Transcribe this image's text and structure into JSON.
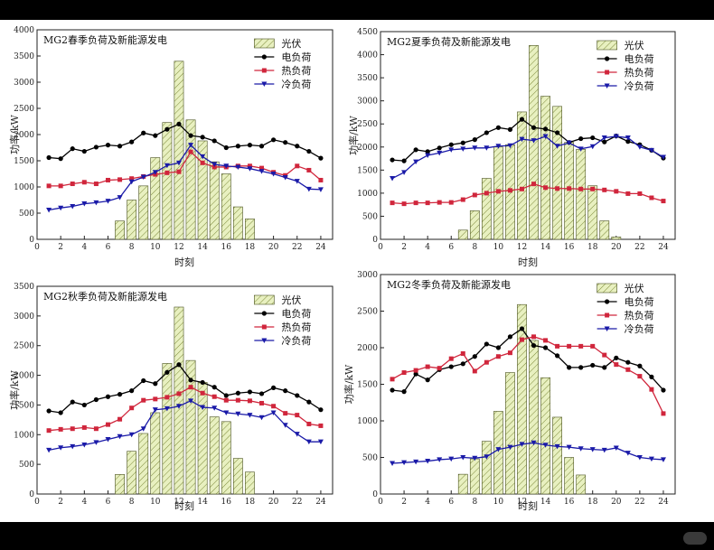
{
  "colors": {
    "pv_fill": "#e8f0c0",
    "pv_hatch": "#7d8a3a",
    "electric": "#000000",
    "heat": "#d0263c",
    "cold": "#1a1aa8"
  },
  "legend_labels": [
    "光伏",
    "电负荷",
    "热负荷",
    "冷负荷"
  ],
  "watermark": "",
  "chart_data": [
    {
      "type": "bar+line",
      "title": "MG2春季负荷及新能源发电",
      "xlabel": "时刻",
      "ylabel": "功率/kW",
      "xlim": [
        0,
        25
      ],
      "xticks": [
        0,
        2,
        4,
        6,
        8,
        10,
        12,
        14,
        16,
        18,
        20,
        22,
        24
      ],
      "ylim": [
        0,
        4000
      ],
      "yticks": [
        0,
        500,
        1000,
        1500,
        2000,
        2500,
        3000,
        3500,
        4000
      ],
      "legend_position": "top-right",
      "bars": {
        "name": "光伏",
        "x": [
          7,
          8,
          9,
          10,
          11,
          12,
          13,
          14,
          15,
          16,
          17,
          18
        ],
        "values": [
          350,
          750,
          1020,
          1560,
          2230,
          3400,
          2280,
          1880,
          1480,
          1250,
          620,
          390
        ]
      },
      "series": [
        {
          "name": "电负荷",
          "key": "electric",
          "marker": "circle",
          "values": [
            1560,
            1540,
            1730,
            1680,
            1760,
            1800,
            1780,
            1860,
            2030,
            1980,
            2100,
            2200,
            1980,
            1950,
            1880,
            1750,
            1780,
            1800,
            1780,
            1900,
            1850,
            1780,
            1680,
            1550
          ]
        },
        {
          "name": "热负荷",
          "key": "heat",
          "marker": "square",
          "values": [
            1020,
            1020,
            1060,
            1090,
            1060,
            1130,
            1140,
            1160,
            1200,
            1240,
            1270,
            1290,
            1670,
            1460,
            1380,
            1380,
            1400,
            1400,
            1360,
            1280,
            1220,
            1400,
            1320,
            1130
          ]
        },
        {
          "name": "冷负荷",
          "key": "cold",
          "marker": "triangle-down",
          "values": [
            560,
            600,
            630,
            680,
            700,
            730,
            800,
            1100,
            1190,
            1280,
            1410,
            1460,
            1800,
            1580,
            1430,
            1400,
            1380,
            1350,
            1300,
            1250,
            1180,
            1110,
            960,
            950
          ]
        }
      ]
    },
    {
      "type": "bar+line",
      "title": "MG2夏季负荷及新能源发电",
      "xlabel": "时刻",
      "ylabel": "功率/kW",
      "xlim": [
        0,
        25
      ],
      "xticks": [
        0,
        2,
        4,
        6,
        8,
        10,
        12,
        14,
        16,
        18,
        20,
        22,
        24
      ],
      "ylim": [
        0,
        4500
      ],
      "yticks": [
        0,
        500,
        1000,
        1500,
        2000,
        2500,
        3000,
        3500,
        4000,
        4500
      ],
      "legend_position": "top-right",
      "bars": {
        "name": "光伏",
        "x": [
          7,
          8,
          9,
          10,
          11,
          12,
          13,
          14,
          15,
          16,
          17,
          18,
          19,
          20
        ],
        "values": [
          200,
          620,
          1320,
          2000,
          2050,
          2760,
          4200,
          3100,
          2880,
          2100,
          1950,
          1160,
          400,
          50
        ]
      },
      "series": [
        {
          "name": "电负荷",
          "key": "electric",
          "marker": "circle",
          "values": [
            1720,
            1700,
            1940,
            1900,
            1980,
            2050,
            2090,
            2160,
            2310,
            2420,
            2380,
            2600,
            2420,
            2390,
            2310,
            2100,
            2180,
            2200,
            2110,
            2240,
            2120,
            2050,
            1930,
            1760
          ]
        },
        {
          "name": "热负荷",
          "key": "heat",
          "marker": "square",
          "values": [
            790,
            770,
            790,
            790,
            800,
            800,
            860,
            960,
            1000,
            1040,
            1060,
            1090,
            1200,
            1120,
            1100,
            1100,
            1090,
            1090,
            1070,
            1040,
            990,
            990,
            900,
            830
          ]
        },
        {
          "name": "冷负荷",
          "key": "cold",
          "marker": "triangle-down",
          "values": [
            1320,
            1450,
            1680,
            1820,
            1870,
            1940,
            1960,
            1980,
            1980,
            2020,
            2030,
            2170,
            2140,
            2230,
            2020,
            2090,
            1960,
            2010,
            2200,
            2230,
            2200,
            2000,
            1930,
            1780
          ]
        }
      ]
    },
    {
      "type": "bar+line",
      "title": "MG2秋季负荷及新能源发电",
      "xlabel": "时刻",
      "ylabel": "功率/kW",
      "xlim": [
        0,
        25
      ],
      "xticks": [
        0,
        2,
        4,
        6,
        8,
        10,
        12,
        14,
        16,
        18,
        20,
        22,
        24
      ],
      "ylim": [
        0,
        3500
      ],
      "yticks": [
        0,
        500,
        1000,
        1500,
        2000,
        2500,
        3000,
        3500
      ],
      "legend_position": "top-right",
      "bars": {
        "name": "光伏",
        "x": [
          7,
          8,
          9,
          10,
          11,
          12,
          13,
          14,
          15,
          16,
          17,
          18
        ],
        "values": [
          330,
          720,
          1020,
          1370,
          2200,
          3150,
          2250,
          1880,
          1300,
          1220,
          600,
          370
        ]
      },
      "series": [
        {
          "name": "电负荷",
          "key": "electric",
          "marker": "circle",
          "values": [
            1400,
            1370,
            1550,
            1500,
            1590,
            1640,
            1680,
            1740,
            1910,
            1860,
            2050,
            2180,
            1920,
            1880,
            1800,
            1660,
            1700,
            1720,
            1690,
            1790,
            1740,
            1660,
            1550,
            1420
          ]
        },
        {
          "name": "热负荷",
          "key": "heat",
          "marker": "square",
          "values": [
            1070,
            1090,
            1100,
            1120,
            1100,
            1170,
            1260,
            1450,
            1580,
            1600,
            1630,
            1690,
            1800,
            1700,
            1640,
            1580,
            1580,
            1570,
            1530,
            1480,
            1360,
            1330,
            1180,
            1150
          ]
        },
        {
          "name": "冷负荷",
          "key": "cold",
          "marker": "triangle-down",
          "values": [
            740,
            780,
            800,
            830,
            870,
            920,
            970,
            1000,
            1100,
            1420,
            1440,
            1480,
            1570,
            1460,
            1450,
            1370,
            1350,
            1330,
            1290,
            1370,
            1160,
            1010,
            880,
            880
          ]
        }
      ]
    },
    {
      "type": "bar+line",
      "title": "MG2冬季负荷及新能源发电",
      "xlabel": "时刻",
      "ylabel": "功率/kW",
      "xlim": [
        0,
        25
      ],
      "xticks": [
        0,
        2,
        4,
        6,
        8,
        10,
        12,
        14,
        16,
        18,
        20,
        22,
        24
      ],
      "ylim": [
        0,
        3000
      ],
      "yticks": [
        0,
        500,
        1000,
        1500,
        2000,
        2500,
        3000
      ],
      "legend_position": "top-right",
      "bars": {
        "name": "光伏",
        "x": [
          7,
          8,
          9,
          10,
          11,
          12,
          13,
          14,
          15,
          16,
          17
        ],
        "values": [
          270,
          480,
          720,
          1130,
          1660,
          2590,
          2100,
          1590,
          1050,
          500,
          260
        ]
      },
      "series": [
        {
          "name": "电负荷",
          "key": "electric",
          "marker": "circle",
          "values": [
            1420,
            1400,
            1640,
            1560,
            1700,
            1740,
            1780,
            1880,
            2050,
            2000,
            2150,
            2260,
            2030,
            2000,
            1890,
            1730,
            1730,
            1760,
            1730,
            1860,
            1800,
            1750,
            1600,
            1420
          ]
        },
        {
          "name": "热负荷",
          "key": "heat",
          "marker": "square",
          "values": [
            1570,
            1660,
            1690,
            1740,
            1720,
            1850,
            1920,
            1680,
            1800,
            1880,
            1930,
            2110,
            2150,
            2100,
            2020,
            2020,
            2020,
            2020,
            1900,
            1770,
            1700,
            1610,
            1430,
            1100
          ]
        },
        {
          "name": "冷负荷",
          "key": "cold",
          "marker": "triangle-down",
          "values": [
            420,
            430,
            440,
            450,
            470,
            480,
            500,
            490,
            510,
            610,
            640,
            680,
            700,
            670,
            650,
            640,
            620,
            610,
            600,
            630,
            560,
            500,
            480,
            470
          ]
        }
      ]
    }
  ]
}
